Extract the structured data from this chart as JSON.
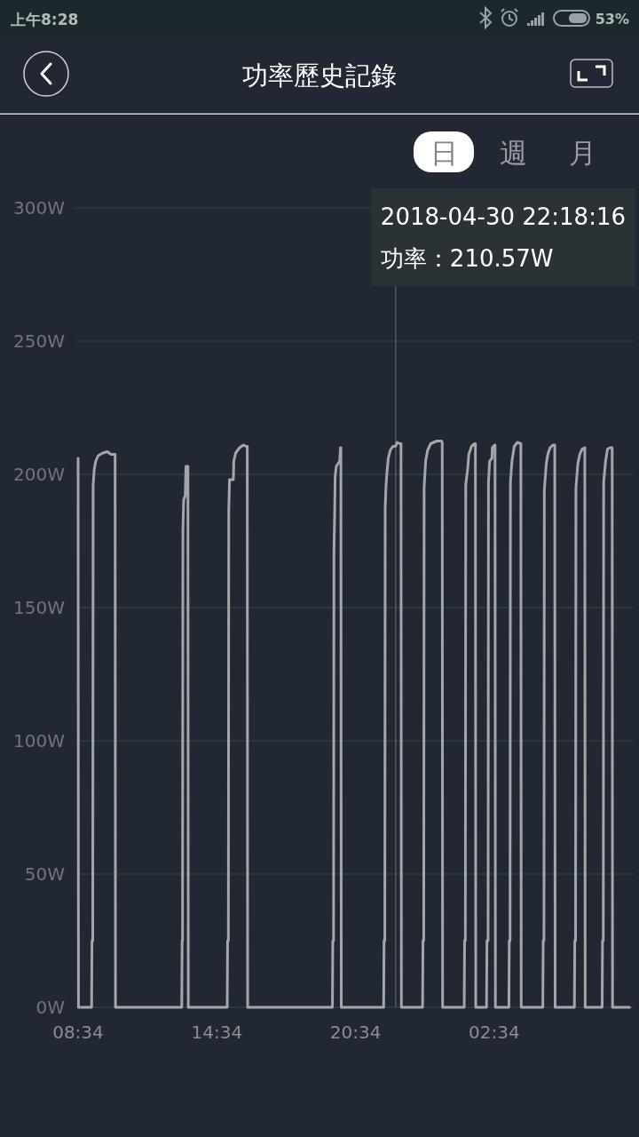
{
  "chart_data": {
    "type": "line",
    "title": "功率歷史記錄",
    "x": [
      "2018-04-30T08:34",
      "2018-04-30T08:35",
      "2018-04-30T09:09",
      "2018-04-30T09:10",
      "2018-04-30T09:12",
      "2018-04-30T09:13",
      "2018-04-30T09:16",
      "2018-04-30T09:20",
      "2018-04-30T09:26",
      "2018-04-30T09:38",
      "2018-04-30T09:50",
      "2018-04-30T09:59",
      "2018-04-30T10:10",
      "2018-04-30T10:11",
      "2018-04-30T13:03",
      "2018-04-30T13:04",
      "2018-04-30T13:05",
      "2018-04-30T13:06",
      "2018-04-30T13:08",
      "2018-04-30T13:12",
      "2018-04-30T13:14",
      "2018-04-30T13:19",
      "2018-04-30T13:20",
      "2018-04-30T15:01",
      "2018-04-30T15:02",
      "2018-04-30T15:04",
      "2018-04-30T15:05",
      "2018-04-30T15:07",
      "2018-04-30T15:17",
      "2018-04-30T15:18",
      "2018-04-30T15:23",
      "2018-04-30T15:33",
      "2018-04-30T15:43",
      "2018-04-30T15:50",
      "2018-04-30T15:53",
      "2018-04-30T15:54",
      "2018-04-30T19:34",
      "2018-04-30T19:35",
      "2018-04-30T19:37",
      "2018-04-30T19:38",
      "2018-04-30T19:40",
      "2018-04-30T19:41",
      "2018-04-30T19:44",
      "2018-04-30T19:53",
      "2018-04-30T19:55",
      "2018-04-30T19:56",
      "2018-04-30T19:57",
      "2018-04-30T21:47",
      "2018-04-30T21:48",
      "2018-04-30T21:50",
      "2018-04-30T21:51",
      "2018-04-30T21:53",
      "2018-04-30T21:56",
      "2018-04-30T21:59",
      "2018-04-30T22:04",
      "2018-04-30T22:11",
      "2018-04-30T22:18:16",
      "2018-04-30T22:22",
      "2018-04-30T22:29",
      "2018-04-30T22:32",
      "2018-04-30T22:33",
      "2018-04-30T23:28",
      "2018-04-30T23:29",
      "2018-04-30T23:31",
      "2018-04-30T23:32",
      "2018-04-30T23:36",
      "2018-04-30T23:41",
      "2018-04-30T23:49",
      "2018-05-01T00:05",
      "2018-05-01T00:17",
      "2018-05-01T00:19",
      "2018-05-01T00:20",
      "2018-05-01T01:16",
      "2018-05-01T01:17",
      "2018-05-01T01:19",
      "2018-05-01T01:20",
      "2018-05-01T01:25",
      "2018-05-01T01:28",
      "2018-05-01T01:35",
      "2018-05-01T01:43",
      "2018-05-01T01:45",
      "2018-05-01T01:46",
      "2018-05-01T02:14",
      "2018-05-01T02:15",
      "2018-05-01T02:18",
      "2018-05-01T02:19",
      "2018-05-01T02:22",
      "2018-05-01T02:28",
      "2018-05-01T02:29",
      "2018-05-01T02:35",
      "2018-05-01T02:36",
      "2018-05-01T02:37",
      "2018-05-01T03:12",
      "2018-05-01T03:13",
      "2018-05-01T03:15",
      "2018-05-01T03:16",
      "2018-05-01T03:20",
      "2018-05-01T03:26",
      "2018-05-01T03:34",
      "2018-05-01T03:43",
      "2018-05-01T03:44",
      "2018-05-01T04:40",
      "2018-05-01T04:41",
      "2018-05-01T04:43",
      "2018-05-01T04:44",
      "2018-05-01T04:49",
      "2018-05-01T04:53",
      "2018-05-01T04:59",
      "2018-05-01T05:06",
      "2018-05-01T05:11",
      "2018-05-01T05:12",
      "2018-05-01T06:02",
      "2018-05-01T06:03",
      "2018-05-01T06:05",
      "2018-05-01T06:06",
      "2018-05-01T06:11",
      "2018-05-01T06:16",
      "2018-05-01T06:22",
      "2018-05-01T06:29",
      "2018-05-01T06:30",
      "2018-05-01T07:14",
      "2018-05-01T07:15",
      "2018-05-01T07:17",
      "2018-05-01T07:18",
      "2018-05-01T07:23",
      "2018-05-01T07:28",
      "2018-05-01T07:35",
      "2018-05-01T07:40",
      "2018-05-01T07:41",
      "2018-05-01T08:25"
    ],
    "series": [
      {
        "color": "#a3a6ab",
        "values": [
          206,
          0,
          0,
          25,
          25,
          196,
          202,
          205,
          207,
          208,
          208.5,
          207.5,
          207.5,
          0,
          0,
          25,
          25,
          179,
          190.5,
          192,
          203,
          203,
          0,
          0,
          25,
          25,
          186,
          198,
          198,
          205,
          208,
          210,
          211,
          210.5,
          210.5,
          0,
          0,
          25,
          25,
          171,
          187,
          199,
          203,
          205,
          210,
          210,
          0,
          0,
          25,
          25,
          187.5,
          195.5,
          201.5,
          206,
          209,
          210.5,
          210.57,
          212,
          211.5,
          211.5,
          0,
          0,
          25,
          25,
          195,
          205,
          209,
          211.5,
          212.5,
          212.5,
          212,
          0,
          0,
          25,
          25,
          196,
          202,
          207.5,
          210.5,
          211.5,
          211.5,
          0,
          0,
          25,
          25,
          197,
          205,
          206,
          210,
          211,
          211,
          0,
          0,
          25,
          25,
          197,
          205,
          210.5,
          212,
          211.5,
          0,
          0,
          25,
          25,
          194,
          204,
          207.5,
          210,
          211,
          211,
          0,
          0,
          25,
          25,
          195,
          204,
          207.5,
          209.5,
          210,
          0,
          0,
          25,
          25,
          197,
          205,
          209.5,
          210,
          210,
          0,
          0
        ]
      }
    ],
    "xlim": [
      "2018-04-30T08:34",
      "2018-05-01T08:34"
    ],
    "xticks": [
      {
        "value": "2018-04-30T08:34",
        "label": "08:34"
      },
      {
        "value": "2018-04-30T14:34",
        "label": "14:34"
      },
      {
        "value": "2018-04-30T20:34",
        "label": "20:34"
      },
      {
        "value": "2018-05-01T02:34",
        "label": "02:34"
      }
    ],
    "ylim": [
      0,
      300
    ],
    "yticks": [
      {
        "value": 0,
        "label": "0W"
      },
      {
        "value": 50,
        "label": "50W"
      },
      {
        "value": 100,
        "label": "100W"
      },
      {
        "value": 150,
        "label": "150W"
      },
      {
        "value": 200,
        "label": "200W"
      },
      {
        "value": 250,
        "label": "250W"
      },
      {
        "value": 300,
        "label": "300W"
      }
    ],
    "grid": "y",
    "marker": "none",
    "line_style": "solid",
    "ref_lines": [
      {
        "axis": "x",
        "value": "2018-04-30T22:18:16",
        "label": "2018-04-30 22:18:16",
        "color": "#5a6168"
      }
    ],
    "annotations": [
      "上午8:28",
      "53%",
      "日",
      "週",
      "月",
      "功率：210.57W"
    ]
  }
}
